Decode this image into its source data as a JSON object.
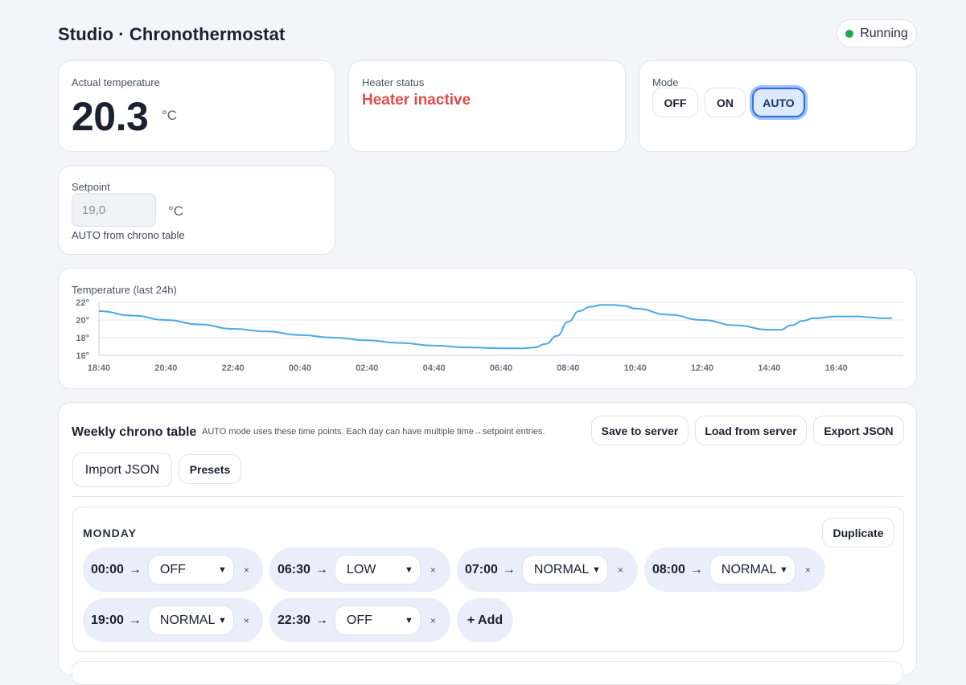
{
  "header": {
    "title": "Studio · Chronothermostat",
    "status": "Running",
    "status_color": "#1fa84a"
  },
  "actual": {
    "label": "Actual temperature",
    "value": "20.3",
    "unit": "°C"
  },
  "heater": {
    "label": "Heater status",
    "value": "Heater inactive",
    "color": "#e04b4b"
  },
  "mode": {
    "label": "Mode",
    "options": [
      "OFF",
      "ON",
      "AUTO"
    ],
    "selected": "AUTO"
  },
  "setpoint": {
    "label": "Setpoint",
    "value": "19,0",
    "unit": "°C",
    "note": "AUTO from chrono table"
  },
  "chart_data": {
    "type": "line",
    "title": "Temperature (last 24h)",
    "xlabel": "",
    "ylabel": "",
    "ylim": [
      16,
      22
    ],
    "yticks": [
      "16°",
      "18°",
      "20°",
      "22°"
    ],
    "xticks": [
      "18:40",
      "20:40",
      "22:40",
      "00:40",
      "02:40",
      "04:40",
      "06:40",
      "08:40",
      "10:40",
      "12:40",
      "14:40",
      "16:40"
    ],
    "grid": true,
    "legend": "none",
    "color": "#4aa8e8",
    "series": [
      {
        "x": [
          "18:40",
          "19:40",
          "20:40",
          "21:40",
          "22:40",
          "23:40",
          "00:40",
          "01:40",
          "02:40",
          "03:40",
          "04:40",
          "05:40",
          "06:40",
          "07:20",
          "07:40",
          "08:00",
          "08:20",
          "08:40",
          "09:00",
          "09:20",
          "09:40",
          "10:00",
          "10:20",
          "10:40",
          "11:40",
          "12:40",
          "13:40",
          "14:40",
          "15:00",
          "15:20",
          "15:40",
          "16:00",
          "16:40",
          "17:20",
          "17:40",
          "18:00",
          "18:20"
        ],
        "values": [
          21.0,
          20.5,
          20.0,
          19.5,
          19.0,
          18.7,
          18.3,
          18.0,
          17.7,
          17.4,
          17.1,
          16.9,
          16.8,
          16.8,
          16.9,
          17.3,
          18.2,
          19.8,
          21.0,
          21.5,
          21.7,
          21.7,
          21.6,
          21.3,
          20.6,
          20.0,
          19.4,
          18.9,
          18.9,
          19.4,
          19.9,
          20.2,
          20.4,
          20.4,
          20.3,
          20.2,
          20.2
        ]
      }
    ]
  },
  "chrono": {
    "title": "Weekly chrono table",
    "description": "AUTO mode uses these time points. Each day can have multiple time→setpoint entries.",
    "buttons": {
      "save": "Save to server",
      "load": "Load from server",
      "export": "Export JSON",
      "import": "Import JSON",
      "presets": "Presets"
    },
    "day": {
      "name": "MONDAY",
      "duplicate": "Duplicate",
      "add": "+ Add",
      "arrow": "→",
      "remove": "×",
      "entries": [
        {
          "time": "00:00",
          "setpoint": "OFF"
        },
        {
          "time": "06:30",
          "setpoint": "LOW"
        },
        {
          "time": "07:00",
          "setpoint": "NORMAL"
        },
        {
          "time": "08:00",
          "setpoint": "NORMAL"
        },
        {
          "time": "19:00",
          "setpoint": "NORMAL"
        },
        {
          "time": "22:30",
          "setpoint": "OFF"
        }
      ]
    }
  }
}
